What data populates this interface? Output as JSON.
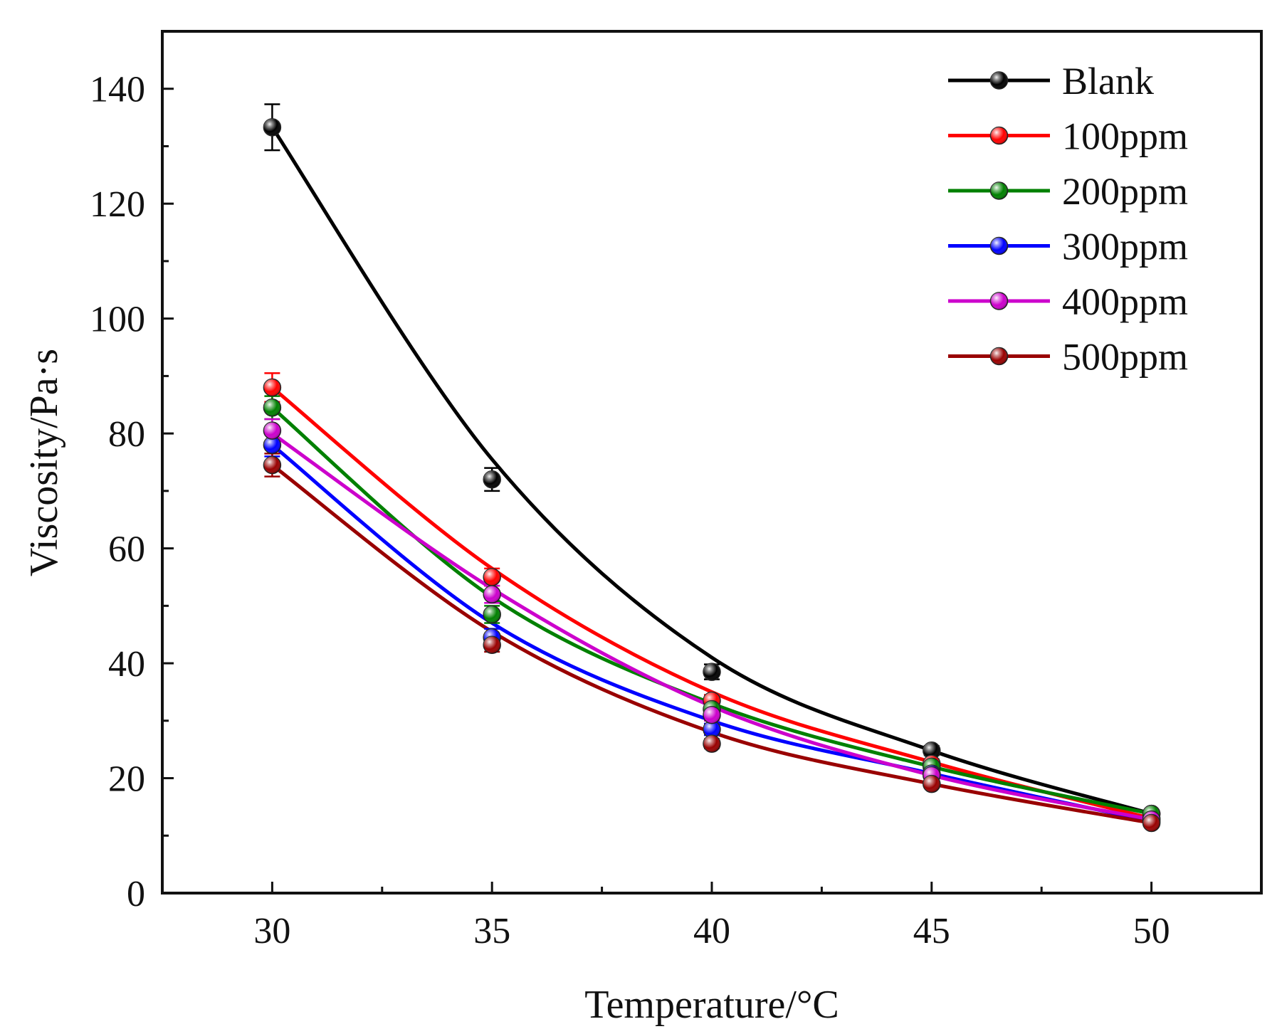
{
  "chart_data": {
    "type": "line",
    "title": "",
    "xlabel": "Temperature/°C",
    "ylabel": "Viscosity/Pa·s",
    "xlim": [
      27.5,
      52.5
    ],
    "ylim": [
      0,
      150
    ],
    "xticks": [
      "30",
      "35",
      "40",
      "45",
      "50"
    ],
    "yticks": [
      "0",
      "20",
      "40",
      "60",
      "80",
      "100",
      "120",
      "140"
    ],
    "grid": false,
    "legend_position": "top-right",
    "x": [
      30,
      35,
      40,
      45,
      50
    ],
    "series": [
      {
        "name": "Blank",
        "color": "#000000",
        "values": [
          133.3,
          72.0,
          38.5,
          24.8,
          13.8
        ],
        "errors": [
          4.0,
          2.0,
          1.3,
          0.8,
          0.5
        ],
        "fit": [
          133.3,
          75.5,
          41.0,
          24.8,
          13.8
        ]
      },
      {
        "name": "100ppm",
        "color": "#ff0000",
        "values": [
          88.0,
          55.0,
          33.5,
          22.5,
          13.0
        ],
        "errors": [
          2.5,
          1.5,
          1.0,
          0.8,
          0.5
        ],
        "fit": [
          88.0,
          56.5,
          35.0,
          22.8,
          13.0
        ]
      },
      {
        "name": "200ppm",
        "color": "#008000",
        "values": [
          84.5,
          48.5,
          32.0,
          22.0,
          13.8
        ],
        "errors": [
          2.0,
          1.5,
          1.0,
          0.8,
          0.5
        ],
        "fit": [
          84.5,
          51.5,
          33.0,
          22.0,
          13.8
        ]
      },
      {
        "name": "300ppm",
        "color": "#0000ff",
        "values": [
          78.0,
          44.5,
          28.5,
          20.8,
          12.5
        ],
        "errors": [
          2.0,
          1.5,
          1.0,
          0.7,
          0.5
        ],
        "fit": [
          78.0,
          47.0,
          30.0,
          20.8,
          12.5
        ]
      },
      {
        "name": "400ppm",
        "color": "#cc00cc",
        "values": [
          80.5,
          52.0,
          31.0,
          20.5,
          12.8
        ],
        "errors": [
          2.0,
          1.5,
          1.0,
          0.7,
          0.5
        ],
        "fit": [
          80.0,
          53.0,
          32.5,
          20.5,
          12.8
        ]
      },
      {
        "name": "500ppm",
        "color": "#990000",
        "values": [
          74.5,
          43.2,
          26.0,
          19.0,
          12.2
        ],
        "errors": [
          2.0,
          1.2,
          0.8,
          0.6,
          0.5
        ],
        "fit": [
          74.5,
          45.5,
          28.0,
          19.0,
          12.2
        ]
      }
    ]
  }
}
